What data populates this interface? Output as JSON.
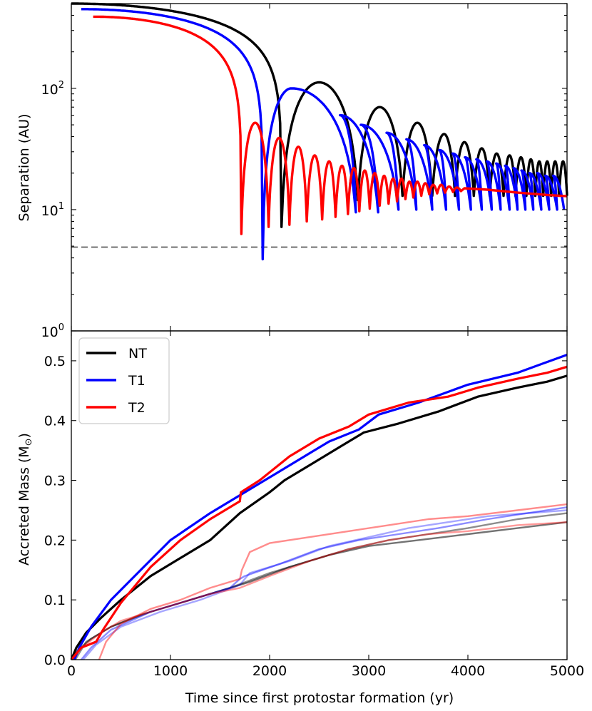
{
  "chart_data": [
    {
      "panel": "top",
      "type": "line",
      "yscale": "log",
      "ylabel": "Separation (AU)",
      "xlim": [
        0,
        5000
      ],
      "ylim": [
        1,
        500
      ],
      "yticks": [
        {
          "value": 1,
          "base": "10",
          "exp": "0"
        },
        {
          "value": 10,
          "base": "10",
          "exp": "1"
        },
        {
          "value": 100,
          "base": "10",
          "exp": "2"
        }
      ],
      "reference_line": {
        "y": 4.9,
        "style": "dashed",
        "color": "#808080"
      },
      "series": [
        {
          "name": "NT",
          "color": "#000000",
          "start": 0,
          "start_sep": 500,
          "first_peri": 2120,
          "first_min": 7.2,
          "periastrons": [
            2120,
            2890,
            3340,
            3640,
            3870,
            4060,
            4220,
            4360,
            4480,
            4590,
            4680,
            4760,
            4840,
            4920,
            5000
          ],
          "apastrons": [
            2500,
            3110,
            3490,
            3760,
            3965,
            4140,
            4290,
            4420,
            4535,
            4635,
            4720,
            4800,
            4880,
            4960
          ],
          "apo_values": [
            112,
            70,
            52,
            42,
            36,
            32,
            29,
            28,
            27,
            26,
            25,
            25,
            25,
            25
          ],
          "peri_values": [
            7.2,
            12,
            13,
            13,
            13,
            13,
            13,
            13,
            13,
            13,
            13,
            13,
            13,
            13,
            13
          ]
        },
        {
          "name": "T1",
          "color": "#0000ff",
          "start": 100,
          "start_sep": 450,
          "first_peri": 1930,
          "first_min": 3.9,
          "periastrons": [
            1930,
            2870,
            3095,
            3300,
            3480,
            3640,
            3780,
            3910,
            4030,
            4140,
            4240,
            4330,
            4420,
            4500,
            4580,
            4660,
            4740,
            4820,
            4900,
            4970
          ],
          "apastrons": [
            2220,
            2710,
            2920,
            3180,
            3380,
            3560,
            3710,
            3845,
            3970,
            4085,
            4190,
            4285,
            4375,
            4460,
            4540,
            4620,
            4700,
            4780,
            4860,
            4935
          ],
          "apo_values": [
            100,
            60,
            50,
            43,
            38,
            34,
            31,
            29,
            27,
            26,
            25,
            24,
            23,
            22,
            21,
            20,
            20,
            19,
            19,
            19
          ],
          "peri_values": [
            3.9,
            9.5,
            9.5,
            10,
            10,
            10,
            10,
            10,
            10,
            10,
            10,
            10,
            10,
            10,
            10,
            10,
            10,
            10,
            10,
            10
          ]
        },
        {
          "name": "T2",
          "color": "#ff0000",
          "start": 220,
          "start_sep": 390,
          "first_peri": 1715,
          "first_min": 6.3,
          "periastrons": [
            1715,
            1990,
            2200,
            2375,
            2530,
            2665,
            2790,
            2905,
            3010,
            3110,
            3200,
            3285,
            3370,
            3450,
            3530,
            3610,
            3690,
            3770,
            3850,
            3930
          ],
          "apastrons": [
            1855,
            2095,
            2290,
            2455,
            2600,
            2730,
            2850,
            2960,
            3060,
            3155,
            3245,
            3330,
            3410,
            3490,
            3570,
            3650,
            3730,
            3810,
            3890,
            3965
          ],
          "apo_values": [
            52,
            39,
            33,
            28,
            25,
            23,
            22,
            21,
            20,
            19,
            18,
            18,
            17,
            17,
            16.5,
            16,
            16,
            15.5,
            15.2,
            15
          ],
          "peri_values": [
            6.3,
            7.2,
            7.5,
            8,
            8.3,
            8.7,
            9.2,
            9.7,
            10.2,
            10.8,
            11.2,
            11.7,
            12.2,
            12.6,
            13,
            13.4,
            13.6,
            13.8,
            14,
            14.2
          ],
          "tail": [
            [
              3965,
              15
            ],
            [
              4200,
              14.6
            ],
            [
              4500,
              13.8
            ],
            [
              4800,
              13.2
            ],
            [
              5000,
              12.9
            ]
          ]
        }
      ]
    },
    {
      "panel": "bottom",
      "type": "line",
      "title": "",
      "xlabel": "Time since first protostar formation (yr)",
      "ylabel_main": "Accreted Mass (M",
      "ylabel_sub": "⊙",
      "ylabel_close": ")",
      "xlim": [
        0,
        5000
      ],
      "ylim": [
        0,
        0.55
      ],
      "xticks": [
        "0",
        "1000",
        "2000",
        "3000",
        "4000",
        "5000"
      ],
      "yticks": [
        "0.0",
        "0.1",
        "0.2",
        "0.3",
        "0.4",
        "0.5"
      ],
      "legend": {
        "position": "top-left",
        "entries": [
          "NT",
          "T1",
          "T2"
        ]
      },
      "series": [
        {
          "name": "NT",
          "color": "#000000",
          "width": 3.2,
          "opacity": 1,
          "points": [
            [
              0,
              0
            ],
            [
              50,
              0.02
            ],
            [
              150,
              0.045
            ],
            [
              300,
              0.07
            ],
            [
              500,
              0.1
            ],
            [
              800,
              0.14
            ],
            [
              1100,
              0.17
            ],
            [
              1400,
              0.2
            ],
            [
              1700,
              0.245
            ],
            [
              2000,
              0.28
            ],
            [
              2150,
              0.3
            ],
            [
              2400,
              0.325
            ],
            [
              2700,
              0.355
            ],
            [
              2950,
              0.38
            ],
            [
              3300,
              0.395
            ],
            [
              3700,
              0.415
            ],
            [
              4100,
              0.44
            ],
            [
              4500,
              0.455
            ],
            [
              4800,
              0.465
            ],
            [
              5000,
              0.475
            ]
          ]
        },
        {
          "name": "T1",
          "color": "#0000ff",
          "width": 3.2,
          "opacity": 1,
          "points": [
            [
              30,
              0
            ],
            [
              80,
              0.02
            ],
            [
              200,
              0.055
            ],
            [
              400,
              0.1
            ],
            [
              700,
              0.15
            ],
            [
              1000,
              0.2
            ],
            [
              1400,
              0.245
            ],
            [
              1700,
              0.275
            ],
            [
              2000,
              0.305
            ],
            [
              2300,
              0.335
            ],
            [
              2600,
              0.365
            ],
            [
              2900,
              0.385
            ],
            [
              3100,
              0.41
            ],
            [
              3500,
              0.43
            ],
            [
              4000,
              0.46
            ],
            [
              4500,
              0.48
            ],
            [
              5000,
              0.51
            ]
          ]
        },
        {
          "name": "T2",
          "color": "#ff0000",
          "width": 3.2,
          "opacity": 1,
          "points": [
            [
              0,
              0
            ],
            [
              100,
              0.02
            ],
            [
              250,
              0.03
            ],
            [
              320,
              0.05
            ],
            [
              500,
              0.095
            ],
            [
              800,
              0.155
            ],
            [
              1100,
              0.2
            ],
            [
              1400,
              0.235
            ],
            [
              1700,
              0.265
            ],
            [
              1710,
              0.28
            ],
            [
              1900,
              0.3
            ],
            [
              2200,
              0.34
            ],
            [
              2500,
              0.37
            ],
            [
              2800,
              0.39
            ],
            [
              3000,
              0.41
            ],
            [
              3400,
              0.43
            ],
            [
              3800,
              0.44
            ],
            [
              4100,
              0.455
            ],
            [
              4500,
              0.47
            ],
            [
              4800,
              0.48
            ],
            [
              5000,
              0.49
            ]
          ]
        },
        {
          "name": "NT primary",
          "color": "#000000",
          "width": 2.4,
          "opacity": 0.55,
          "points": [
            [
              0,
              0
            ],
            [
              60,
              0.015
            ],
            [
              200,
              0.035
            ],
            [
              400,
              0.055
            ],
            [
              700,
              0.075
            ],
            [
              1000,
              0.09
            ],
            [
              1400,
              0.11
            ],
            [
              1800,
              0.13
            ],
            [
              2200,
              0.155
            ],
            [
              2600,
              0.175
            ],
            [
              3000,
              0.19
            ],
            [
              3500,
              0.2
            ],
            [
              4000,
              0.21
            ],
            [
              4500,
              0.22
            ],
            [
              5000,
              0.23
            ]
          ]
        },
        {
          "name": "NT secondary",
          "color": "#000000",
          "width": 2.4,
          "opacity": 0.45,
          "points": [
            [
              40,
              0
            ],
            [
              150,
              0.03
            ],
            [
              400,
              0.055
            ],
            [
              800,
              0.08
            ],
            [
              1200,
              0.1
            ],
            [
              1600,
              0.12
            ],
            [
              2000,
              0.145
            ],
            [
              2400,
              0.165
            ],
            [
              2800,
              0.185
            ],
            [
              3200,
              0.2
            ],
            [
              3600,
              0.21
            ],
            [
              4000,
              0.22
            ],
            [
              4500,
              0.235
            ],
            [
              5000,
              0.245
            ]
          ]
        },
        {
          "name": "T1 primary",
          "color": "#0000ff",
          "width": 2.4,
          "opacity": 0.45,
          "points": [
            [
              100,
              0
            ],
            [
              200,
              0.02
            ],
            [
              400,
              0.05
            ],
            [
              800,
              0.08
            ],
            [
              1200,
              0.1
            ],
            [
              1600,
              0.12
            ],
            [
              1700,
              0.135
            ],
            [
              1750,
              0.14
            ],
            [
              2100,
              0.16
            ],
            [
              2500,
              0.185
            ],
            [
              2900,
              0.2
            ],
            [
              3300,
              0.21
            ],
            [
              3700,
              0.22
            ],
            [
              4200,
              0.235
            ],
            [
              4600,
              0.245
            ],
            [
              5000,
              0.255
            ]
          ]
        },
        {
          "name": "T1 secondary",
          "color": "#0000ff",
          "width": 2.4,
          "opacity": 0.35,
          "points": [
            [
              120,
              0
            ],
            [
              250,
              0.025
            ],
            [
              500,
              0.055
            ],
            [
              900,
              0.08
            ],
            [
              1300,
              0.1
            ],
            [
              1700,
              0.125
            ],
            [
              1800,
              0.145
            ],
            [
              2200,
              0.165
            ],
            [
              2600,
              0.19
            ],
            [
              3000,
              0.205
            ],
            [
              3400,
              0.22
            ],
            [
              3800,
              0.23
            ],
            [
              4200,
              0.24
            ],
            [
              5000,
              0.25
            ]
          ]
        },
        {
          "name": "T2 primary",
          "color": "#ff0000",
          "width": 2.4,
          "opacity": 0.45,
          "points": [
            [
              280,
              0
            ],
            [
              350,
              0.03
            ],
            [
              500,
              0.06
            ],
            [
              800,
              0.085
            ],
            [
              1100,
              0.1
            ],
            [
              1400,
              0.12
            ],
            [
              1700,
              0.135
            ],
            [
              1720,
              0.15
            ],
            [
              1800,
              0.18
            ],
            [
              2000,
              0.195
            ],
            [
              2400,
              0.205
            ],
            [
              2800,
              0.215
            ],
            [
              3200,
              0.225
            ],
            [
              3600,
              0.235
            ],
            [
              4000,
              0.24
            ],
            [
              4500,
              0.25
            ],
            [
              5000,
              0.26
            ]
          ]
        },
        {
          "name": "T2 secondary",
          "color": "#ff0000",
          "width": 2.4,
          "opacity": 0.4,
          "points": [
            [
              0,
              0
            ],
            [
              100,
              0.02
            ],
            [
              300,
              0.045
            ],
            [
              500,
              0.065
            ],
            [
              800,
              0.08
            ],
            [
              1100,
              0.095
            ],
            [
              1400,
              0.11
            ],
            [
              1700,
              0.12
            ],
            [
              2000,
              0.14
            ],
            [
              2400,
              0.165
            ],
            [
              2800,
              0.185
            ],
            [
              3200,
              0.2
            ],
            [
              3600,
              0.21
            ],
            [
              4000,
              0.215
            ],
            [
              4500,
              0.225
            ],
            [
              5000,
              0.23
            ]
          ]
        }
      ]
    }
  ]
}
